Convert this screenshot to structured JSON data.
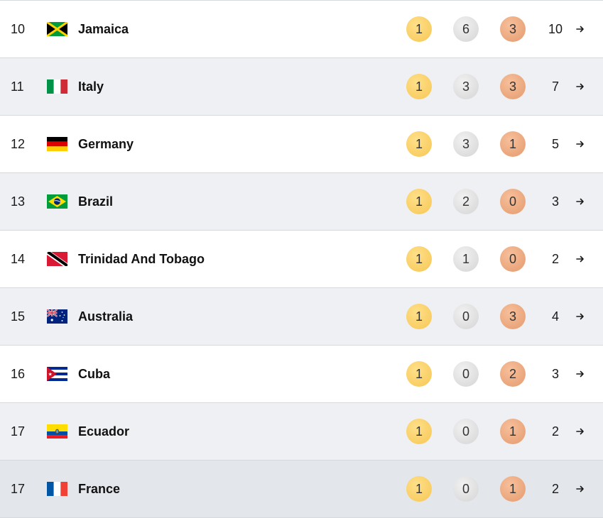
{
  "medal_table": {
    "rows": [
      {
        "rank": "10",
        "country": "Jamaica",
        "flag": "jamaica-flag",
        "gold": "1",
        "silver": "6",
        "bronze": "3",
        "total": "10"
      },
      {
        "rank": "11",
        "country": "Italy",
        "flag": "italy-flag",
        "gold": "1",
        "silver": "3",
        "bronze": "3",
        "total": "7"
      },
      {
        "rank": "12",
        "country": "Germany",
        "flag": "germany-flag",
        "gold": "1",
        "silver": "3",
        "bronze": "1",
        "total": "5"
      },
      {
        "rank": "13",
        "country": "Brazil",
        "flag": "brazil-flag",
        "gold": "1",
        "silver": "2",
        "bronze": "0",
        "total": "3"
      },
      {
        "rank": "14",
        "country": "Trinidad And Tobago",
        "flag": "trinidad-and-tobago-flag",
        "gold": "1",
        "silver": "1",
        "bronze": "0",
        "total": "2"
      },
      {
        "rank": "15",
        "country": "Australia",
        "flag": "australia-flag",
        "gold": "1",
        "silver": "0",
        "bronze": "3",
        "total": "4"
      },
      {
        "rank": "16",
        "country": "Cuba",
        "flag": "cuba-flag",
        "gold": "1",
        "silver": "0",
        "bronze": "2",
        "total": "3"
      },
      {
        "rank": "17",
        "country": "Ecuador",
        "flag": "ecuador-flag",
        "gold": "1",
        "silver": "0",
        "bronze": "1",
        "total": "2"
      },
      {
        "rank": "17",
        "country": "France",
        "flag": "france-flag",
        "gold": "1",
        "silver": "0",
        "bronze": "1",
        "total": "2"
      }
    ],
    "icons": {
      "row_arrow": "arrow-right-icon"
    },
    "colors": {
      "gold": "#f6c653",
      "silver": "#d4d4d4",
      "bronze": "#e49a6d",
      "row_alt": "#eef0f3",
      "row_hover": "#e3e6ea",
      "divider": "#d6d9de"
    }
  }
}
